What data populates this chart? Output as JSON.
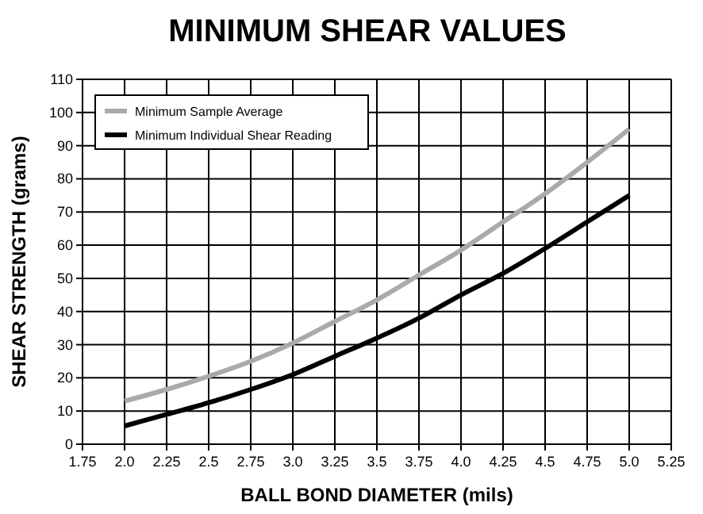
{
  "chart_data": {
    "type": "line",
    "title": "MINIMUM SHEAR VALUES",
    "xlabel": "BALL BOND DIAMETER (mils)",
    "ylabel": "SHEAR STRENGTH (grams)",
    "x": [
      2.0,
      2.25,
      2.5,
      2.75,
      3.0,
      3.25,
      3.5,
      3.75,
      4.0,
      4.25,
      4.5,
      4.75,
      5.0
    ],
    "series": [
      {
        "name": "Minimum Sample Average",
        "color": "#aaaaaa",
        "values": [
          13,
          16.5,
          20.5,
          25,
          30.5,
          37,
          43.5,
          51,
          58.5,
          67,
          75.5,
          85,
          95
        ]
      },
      {
        "name": "Minimum Individual Shear Reading",
        "color": "#000000",
        "values": [
          5.5,
          9,
          12.5,
          16.5,
          21,
          26.5,
          32,
          38,
          45,
          51.5,
          59,
          67,
          75
        ]
      }
    ],
    "xlim": [
      1.75,
      5.25
    ],
    "xticks": [
      1.75,
      {
        "value": 2,
        "label": "2.0"
      },
      2.25,
      2.5,
      2.75,
      {
        "value": 3,
        "label": "3.0"
      },
      3.25,
      3.5,
      3.75,
      {
        "value": 4,
        "label": "4.0"
      },
      4.25,
      4.5,
      4.75,
      {
        "value": 5,
        "label": "5.0"
      },
      5.25
    ],
    "ylim": [
      0,
      110
    ],
    "yticks": [
      0,
      10,
      20,
      30,
      40,
      50,
      60,
      70,
      80,
      90,
      100,
      110
    ],
    "grid": true,
    "legend": "top left",
    "marker": "none",
    "line_style": "solid"
  }
}
